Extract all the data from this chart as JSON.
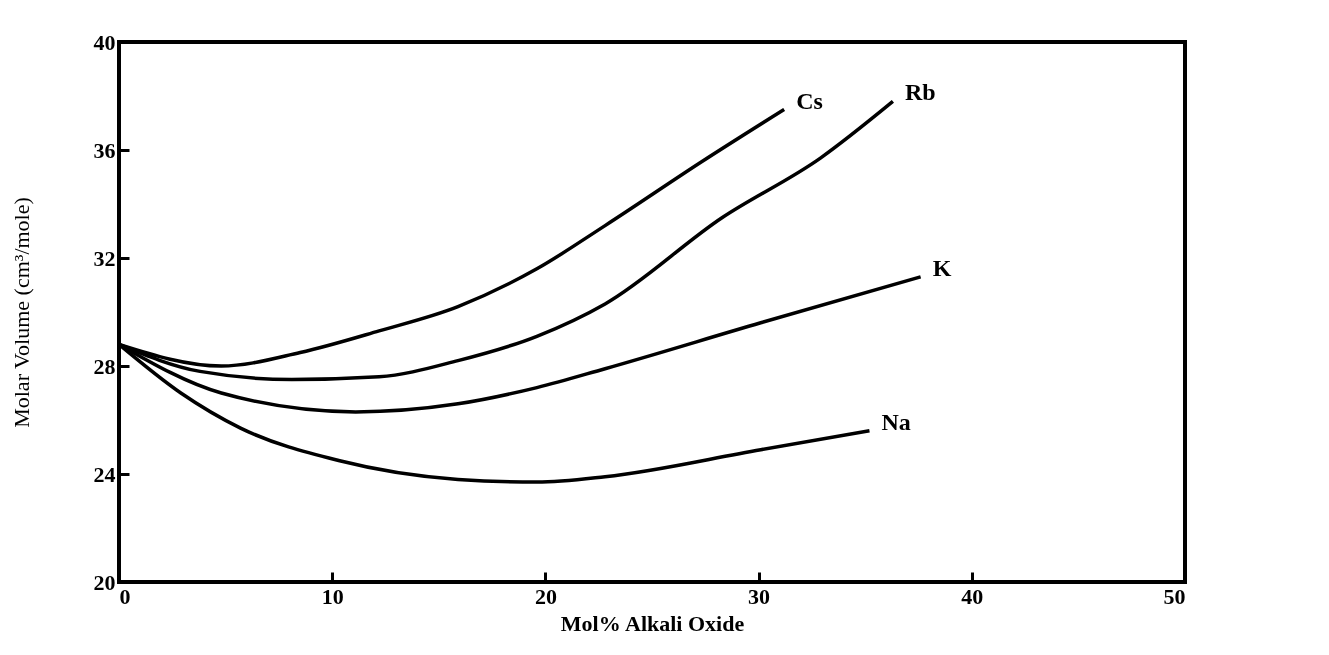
{
  "chart_data": {
    "type": "line",
    "xlabel": "Mol% Alkali Oxide",
    "ylabel": "Molar Volume  (cm³/mole)",
    "xlim": [
      0,
      50
    ],
    "xticks": [
      0,
      10,
      20,
      30,
      40,
      50
    ],
    "ylim": [
      20,
      40
    ],
    "yticks": [
      20,
      24,
      28,
      32,
      36,
      40
    ],
    "grid": false,
    "legend": false,
    "marker": "none",
    "line_style": "solid",
    "series": [
      {
        "name": "Cs",
        "color": "#000000",
        "x": [
          0,
          4.8,
          8.5,
          12.2,
          15.9,
          19.6,
          22.8,
          27.4,
          31.2
        ],
        "values": [
          28.8,
          28.0,
          28.5,
          29.3,
          30.2,
          31.6,
          33.2,
          35.6,
          37.5
        ]
      },
      {
        "name": "Rb",
        "color": "#000000",
        "x": [
          0,
          3.8,
          8.1,
          12.2,
          15.9,
          19.6,
          22.8,
          28.3,
          32.9,
          36.3
        ],
        "values": [
          28.8,
          27.8,
          27.5,
          27.6,
          28.2,
          29.1,
          30.3,
          33.5,
          35.7,
          37.8
        ]
      },
      {
        "name": "K",
        "color": "#000000",
        "x": [
          0,
          4.8,
          11.1,
          15.9,
          19.6,
          22.8,
          30.1,
          37.6
        ],
        "values": [
          28.8,
          27.0,
          26.3,
          26.6,
          27.2,
          27.9,
          29.6,
          31.3
        ]
      },
      {
        "name": "Na",
        "color": "#000000",
        "x": [
          0,
          2.9,
          5.7,
          10.3,
          15.9,
          19.6,
          22.8,
          30.1,
          35.2
        ],
        "values": [
          28.8,
          27.0,
          25.7,
          24.5,
          23.8,
          23.7,
          23.9,
          24.9,
          25.6
        ]
      }
    ]
  }
}
